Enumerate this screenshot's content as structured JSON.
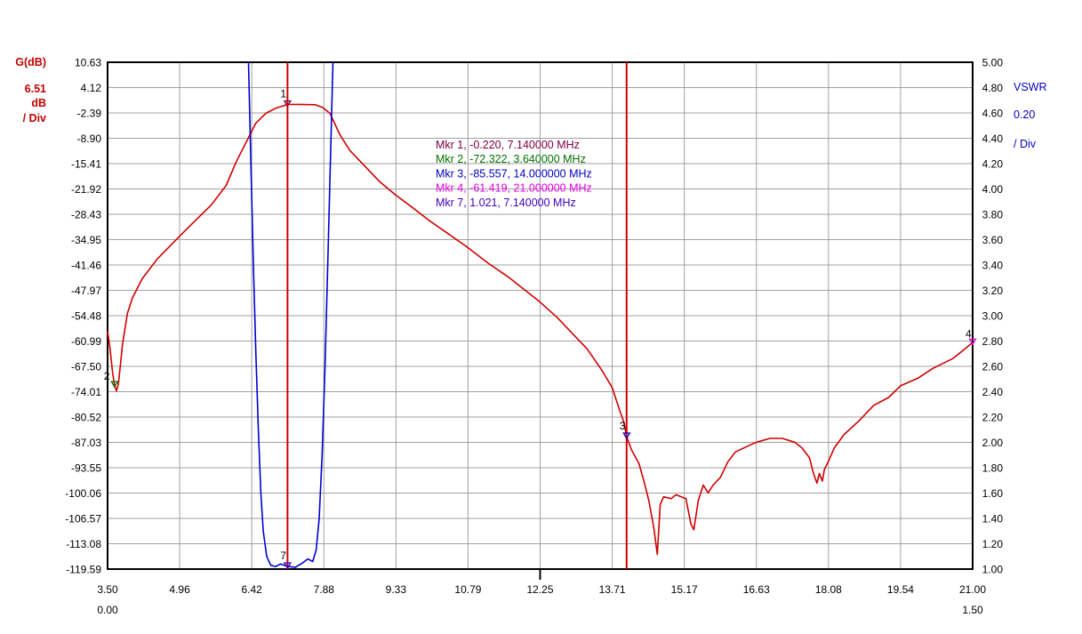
{
  "chart_data": {
    "type": "line",
    "left_axis": {
      "title": "G(dB)",
      "scale_value": "6.51",
      "scale_unit": "dB",
      "scale_div": "/ Div",
      "min": -119.59,
      "max": 10.63,
      "ticks": [
        "10.63",
        "4.12",
        "-2.39",
        "-8.90",
        "-15.41",
        "-21.92",
        "-28.43",
        "-34.95",
        "-41.46",
        "-47.97",
        "-54.48",
        "-60.99",
        "-67.50",
        "-74.01",
        "-80.52",
        "-87.03",
        "-93.55",
        "-100.06",
        "-106.57",
        "-113.08",
        "-119.59"
      ],
      "color": "#c00000"
    },
    "right_axis": {
      "title": "VSWR",
      "scale_value": "0.20",
      "scale_div": "/ Div",
      "min": 1.0,
      "max": 5.0,
      "ticks": [
        "5.00",
        "4.80",
        "4.60",
        "4.40",
        "4.20",
        "4.00",
        "3.80",
        "3.60",
        "3.40",
        "3.20",
        "3.00",
        "2.80",
        "2.60",
        "2.40",
        "2.20",
        "2.00",
        "1.80",
        "1.60",
        "1.40",
        "1.20",
        "1.00"
      ],
      "color": "#0000c0"
    },
    "x_axis": {
      "min": 3.5,
      "max": 21.0,
      "ticks": [
        "3.50",
        "4.96",
        "6.42",
        "7.88",
        "9.33",
        "10.79",
        "12.25",
        "13.71",
        "15.17",
        "16.63",
        "18.08",
        "19.54",
        "21.00"
      ],
      "sub_left": "0.00",
      "sub_right": "1.50"
    },
    "grid": true,
    "vertical_markers_mhz": [
      7.14,
      14.0
    ],
    "marker_legend": [
      {
        "text": "Mkr 1, -0.220, 7.140000 MHz",
        "color": "#800040"
      },
      {
        "text": "Mkr 2, -72.322, 3.640000 MHz",
        "color": "#007000"
      },
      {
        "text": "Mkr 3, -85.557, 14.000000 MHz",
        "color": "#0000c0"
      },
      {
        "text": "Mkr 4, -61.419, 21.000000 MHz",
        "color": "#e000e0"
      },
      {
        "text": "Mkr 7, 1.021, 7.140000 MHz",
        "color": "#4000c0"
      }
    ],
    "markers": [
      {
        "label": "1",
        "x": 7.14,
        "y": -0.22,
        "axis": "left",
        "color": "#800040"
      },
      {
        "label": "2",
        "x": 3.64,
        "y": -72.322,
        "axis": "left",
        "color": "#007000"
      },
      {
        "label": "3",
        "x": 14.0,
        "y": -85.557,
        "axis": "left",
        "color": "#0000c0"
      },
      {
        "label": "4",
        "x": 21.0,
        "y": -61.419,
        "axis": "left",
        "color": "#e000e0"
      },
      {
        "label": "7",
        "x": 7.14,
        "y": 1.021,
        "axis": "right",
        "color": "#4000c0"
      }
    ],
    "series": [
      {
        "axis": "left",
        "color": "#d00000",
        "points": [
          [
            3.5,
            -58.5
          ],
          [
            3.55,
            -63
          ],
          [
            3.6,
            -69
          ],
          [
            3.64,
            -72.3
          ],
          [
            3.68,
            -73.8
          ],
          [
            3.72,
            -72
          ],
          [
            3.76,
            -67
          ],
          [
            3.8,
            -62
          ],
          [
            3.9,
            -54
          ],
          [
            4.0,
            -50
          ],
          [
            4.2,
            -45
          ],
          [
            4.5,
            -40
          ],
          [
            4.96,
            -34
          ],
          [
            5.2,
            -31
          ],
          [
            5.6,
            -26
          ],
          [
            5.9,
            -21
          ],
          [
            6.1,
            -15
          ],
          [
            6.3,
            -10
          ],
          [
            6.5,
            -5
          ],
          [
            6.7,
            -2.5
          ],
          [
            6.9,
            -1.2
          ],
          [
            7.14,
            -0.22
          ],
          [
            7.4,
            -0.2
          ],
          [
            7.7,
            -0.3
          ],
          [
            7.85,
            -1
          ],
          [
            8.0,
            -2.5
          ],
          [
            8.2,
            -8
          ],
          [
            8.4,
            -12
          ],
          [
            8.7,
            -16
          ],
          [
            9.0,
            -20
          ],
          [
            9.33,
            -23.5
          ],
          [
            9.7,
            -27
          ],
          [
            10.0,
            -30
          ],
          [
            10.4,
            -33.5
          ],
          [
            10.79,
            -37
          ],
          [
            11.2,
            -41
          ],
          [
            11.6,
            -44.5
          ],
          [
            12.0,
            -48.5
          ],
          [
            12.25,
            -51
          ],
          [
            12.6,
            -55
          ],
          [
            12.9,
            -59
          ],
          [
            13.2,
            -63
          ],
          [
            13.5,
            -68.5
          ],
          [
            13.71,
            -73
          ],
          [
            13.85,
            -78.5
          ],
          [
            13.95,
            -82
          ],
          [
            14.0,
            -85.6
          ],
          [
            14.1,
            -89
          ],
          [
            14.25,
            -92.5
          ],
          [
            14.35,
            -97
          ],
          [
            14.45,
            -102
          ],
          [
            14.55,
            -109
          ],
          [
            14.62,
            -115.8
          ],
          [
            14.68,
            -103
          ],
          [
            14.75,
            -101
          ],
          [
            14.9,
            -101.5
          ],
          [
            15.0,
            -100.5
          ],
          [
            15.1,
            -101
          ],
          [
            15.2,
            -101.5
          ],
          [
            15.3,
            -108
          ],
          [
            15.36,
            -109.5
          ],
          [
            15.45,
            -102
          ],
          [
            15.55,
            -98
          ],
          [
            15.65,
            -100
          ],
          [
            15.75,
            -98
          ],
          [
            15.9,
            -96
          ],
          [
            16.05,
            -92
          ],
          [
            16.2,
            -89.5
          ],
          [
            16.45,
            -88
          ],
          [
            16.63,
            -87
          ],
          [
            16.9,
            -86
          ],
          [
            17.15,
            -86
          ],
          [
            17.4,
            -87
          ],
          [
            17.55,
            -88.5
          ],
          [
            17.7,
            -91
          ],
          [
            17.78,
            -95
          ],
          [
            17.85,
            -97.5
          ],
          [
            17.9,
            -95
          ],
          [
            17.96,
            -97
          ],
          [
            18.0,
            -94
          ],
          [
            18.08,
            -92
          ],
          [
            18.2,
            -88.5
          ],
          [
            18.4,
            -85
          ],
          [
            18.7,
            -81.5
          ],
          [
            19.0,
            -77.5
          ],
          [
            19.3,
            -75.5
          ],
          [
            19.54,
            -72.5
          ],
          [
            19.9,
            -70.5
          ],
          [
            20.2,
            -68
          ],
          [
            20.6,
            -65.5
          ],
          [
            21.0,
            -61.4
          ]
        ]
      },
      {
        "axis": "right",
        "color": "#0000d0",
        "points": [
          [
            6.35,
            5.0
          ],
          [
            6.4,
            4.2
          ],
          [
            6.45,
            3.4
          ],
          [
            6.5,
            2.7
          ],
          [
            6.55,
            2.1
          ],
          [
            6.6,
            1.6
          ],
          [
            6.65,
            1.3
          ],
          [
            6.72,
            1.1
          ],
          [
            6.8,
            1.03
          ],
          [
            6.9,
            1.02
          ],
          [
            7.0,
            1.04
          ],
          [
            7.14,
            1.021
          ],
          [
            7.3,
            1.015
          ],
          [
            7.45,
            1.05
          ],
          [
            7.55,
            1.08
          ],
          [
            7.65,
            1.06
          ],
          [
            7.72,
            1.15
          ],
          [
            7.78,
            1.4
          ],
          [
            7.84,
            1.9
          ],
          [
            7.9,
            2.6
          ],
          [
            7.96,
            3.5
          ],
          [
            8.02,
            4.4
          ],
          [
            8.06,
            5.0
          ]
        ]
      }
    ]
  }
}
